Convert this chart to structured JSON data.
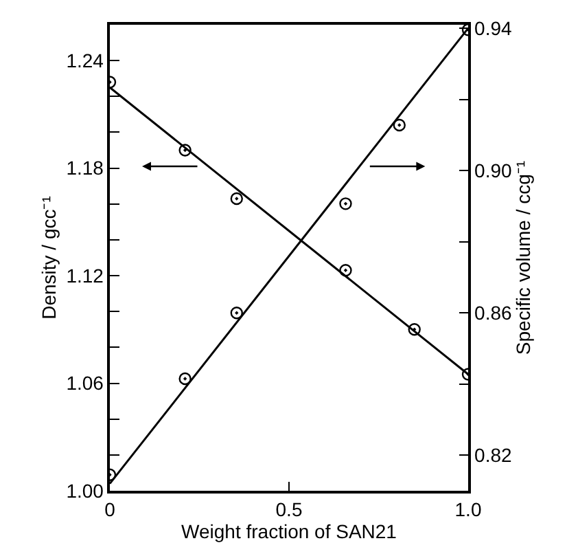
{
  "chart_data": {
    "type": "scatter",
    "xlabel": "Weight fraction of SAN21",
    "ylabel": "Density / gcc⁻¹",
    "y2label": "Specific volume / ccg⁻¹",
    "legend": false,
    "xlim": [
      0,
      1.0
    ],
    "xticks": [
      0,
      0.5,
      {
        "value": 1.0,
        "label": "1.0"
      }
    ],
    "ylim": [
      1.0,
      1.26
    ],
    "yticks": [
      {
        "value": 1.0,
        "label": "1.00"
      },
      {
        "value": 1.02,
        "label": null
      },
      {
        "value": 1.04,
        "label": null
      },
      1.06,
      {
        "value": 1.08,
        "label": null
      },
      {
        "value": 1.1,
        "label": null
      },
      1.12,
      {
        "value": 1.14,
        "label": null
      },
      {
        "value": 1.16,
        "label": null
      },
      1.18,
      {
        "value": 1.2,
        "label": null
      },
      {
        "value": 1.22,
        "label": null
      },
      1.24
    ],
    "y2lim": [
      0.81,
      0.941
    ],
    "y2ticks": [
      0.82,
      {
        "value": 0.84,
        "label": null
      },
      0.86,
      {
        "value": 0.88,
        "label": null
      },
      {
        "value": 0.9,
        "label": "0.90"
      },
      {
        "value": 0.92,
        "label": null
      },
      0.94
    ],
    "series": [
      {
        "marker": "circle",
        "color": "#000000",
        "x": [
          0,
          0.21,
          0.354,
          0.658,
          0.85,
          1.0
        ],
        "values": [
          1.228,
          1.19,
          1.163,
          1.123,
          1.09,
          1.065
        ]
      },
      {
        "type": "line",
        "marker": "none",
        "color": "#000000",
        "x": [
          0,
          1.0
        ],
        "values": [
          1.225,
          1.065
        ]
      },
      {
        "marker": "circle",
        "axis": "y2",
        "color": "#000000",
        "x": [
          0,
          0.21,
          0.354,
          0.658,
          0.808,
          1.0
        ],
        "values": [
          0.8145,
          0.8415,
          0.86,
          0.8907,
          0.9128,
          0.9396
        ]
      },
      {
        "type": "line",
        "marker": "none",
        "axis": "y2",
        "color": "#000000",
        "x": [
          0,
          1.0
        ],
        "values": [
          0.812,
          0.94
        ]
      }
    ]
  }
}
